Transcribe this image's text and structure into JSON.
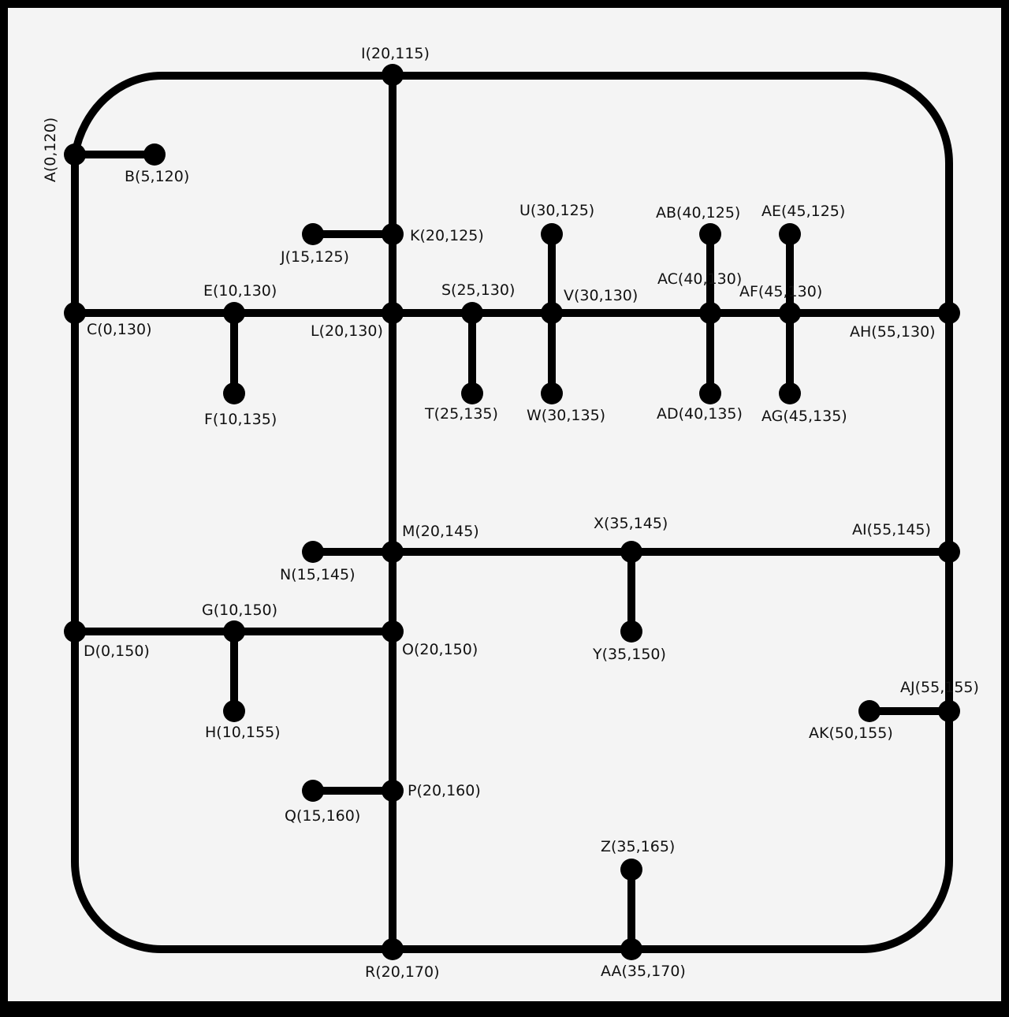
{
  "nodes": [
    {
      "id": "A",
      "label": "A(0,120)"
    },
    {
      "id": "B",
      "label": "B(5,120)"
    },
    {
      "id": "C",
      "label": "C(0,130)"
    },
    {
      "id": "D",
      "label": "D(0,150)"
    },
    {
      "id": "E",
      "label": "E(10,130)"
    },
    {
      "id": "F",
      "label": "F(10,135)"
    },
    {
      "id": "G",
      "label": "G(10,150)"
    },
    {
      "id": "H",
      "label": "H(10,155)"
    },
    {
      "id": "I",
      "label": "I(20,115)"
    },
    {
      "id": "J",
      "label": "J(15,125)"
    },
    {
      "id": "K",
      "label": "K(20,125)"
    },
    {
      "id": "L",
      "label": "L(20,130)"
    },
    {
      "id": "M",
      "label": "M(20,145)"
    },
    {
      "id": "N",
      "label": "N(15,145)"
    },
    {
      "id": "O",
      "label": "O(20,150)"
    },
    {
      "id": "P",
      "label": "P(20,160)"
    },
    {
      "id": "Q",
      "label": "Q(15,160)"
    },
    {
      "id": "R",
      "label": "R(20,170)"
    },
    {
      "id": "S",
      "label": "S(25,130)"
    },
    {
      "id": "T",
      "label": "T(25,135)"
    },
    {
      "id": "U",
      "label": "U(30,125)"
    },
    {
      "id": "V",
      "label": "V(30,130)"
    },
    {
      "id": "W",
      "label": "W(30,135)"
    },
    {
      "id": "X",
      "label": "X(35,145)"
    },
    {
      "id": "Y",
      "label": "Y(35,150)"
    },
    {
      "id": "Z",
      "label": "Z(35,165)"
    },
    {
      "id": "AA",
      "label": "AA(35,170)"
    },
    {
      "id": "AB",
      "label": "AB(40,125)"
    },
    {
      "id": "AC",
      "label": "AC(40,130)"
    },
    {
      "id": "AD",
      "label": "AD(40,135)"
    },
    {
      "id": "AE",
      "label": "AE(45,125)"
    },
    {
      "id": "AF",
      "label": "AF(45,130)"
    },
    {
      "id": "AG",
      "label": "AG(45,135)"
    },
    {
      "id": "AH",
      "label": "AH(55,130)"
    },
    {
      "id": "AI",
      "label": "AI(55,145)"
    },
    {
      "id": "AJ",
      "label": "AJ(55,155)"
    },
    {
      "id": "AK",
      "label": "AK(50,155)"
    }
  ],
  "edges": [
    [
      "A",
      "B"
    ],
    [
      "A",
      "C"
    ],
    [
      "C",
      "D"
    ],
    [
      "C",
      "E"
    ],
    [
      "E",
      "L"
    ],
    [
      "E",
      "F"
    ],
    [
      "I",
      "K"
    ],
    [
      "K",
      "L"
    ],
    [
      "J",
      "K"
    ],
    [
      "L",
      "M"
    ],
    [
      "M",
      "O"
    ],
    [
      "O",
      "P"
    ],
    [
      "P",
      "R"
    ],
    [
      "L",
      "S"
    ],
    [
      "S",
      "V"
    ],
    [
      "S",
      "T"
    ],
    [
      "U",
      "V"
    ],
    [
      "V",
      "W"
    ],
    [
      "V",
      "AC"
    ],
    [
      "AB",
      "AC"
    ],
    [
      "AC",
      "AD"
    ],
    [
      "AC",
      "AF"
    ],
    [
      "AE",
      "AF"
    ],
    [
      "AF",
      "AG"
    ],
    [
      "AF",
      "AH"
    ],
    [
      "N",
      "M"
    ],
    [
      "M",
      "X"
    ],
    [
      "X",
      "AI"
    ],
    [
      "X",
      "Y"
    ],
    [
      "D",
      "G"
    ],
    [
      "G",
      "O"
    ],
    [
      "G",
      "H"
    ],
    [
      "Q",
      "P"
    ],
    [
      "Z",
      "AA"
    ],
    [
      "AH",
      "AI"
    ],
    [
      "AI",
      "AJ"
    ],
    [
      "AK",
      "AJ"
    ],
    [
      "R",
      "AA"
    ]
  ],
  "outer_loop": {
    "description_free": true,
    "path": [
      "A",
      "I",
      "AH",
      "AJ",
      "AA",
      "R",
      "D"
    ]
  }
}
